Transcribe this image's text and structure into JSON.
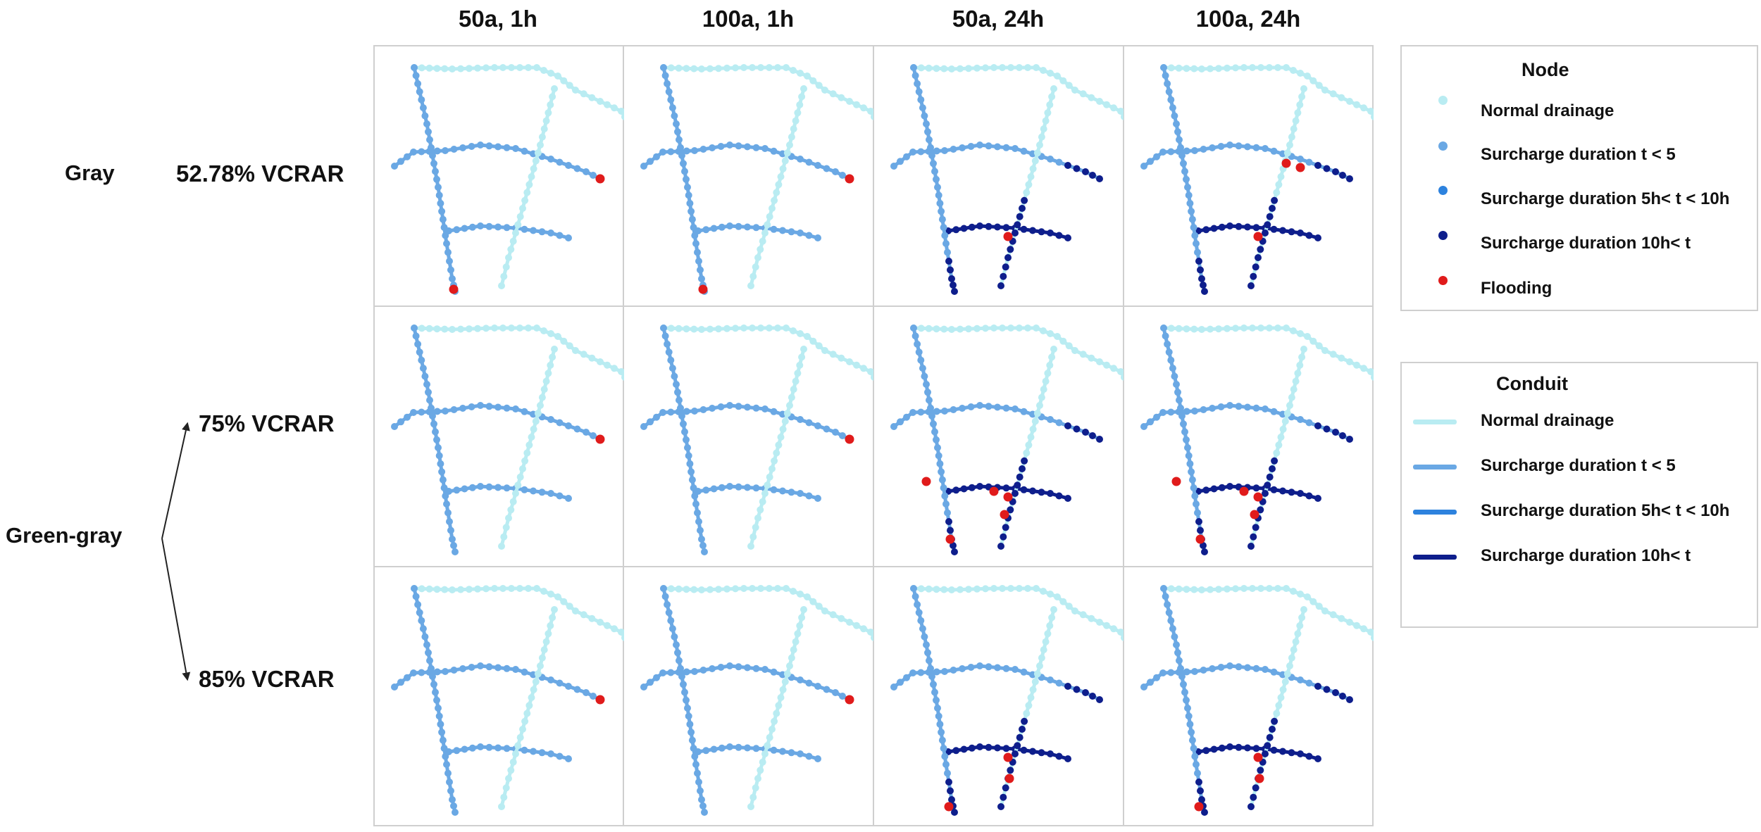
{
  "columns": [
    "50a, 1h",
    "100a, 1h",
    "50a, 24h",
    "100a, 24h"
  ],
  "row_groups": {
    "gray": "Gray",
    "green_gray": "Green-gray"
  },
  "rows": [
    "52.78% VCRAR",
    "75% VCRAR",
    "85% VCRAR"
  ],
  "legend_node": {
    "title": "Node",
    "items": [
      {
        "label": "Normal drainage",
        "color": "#b9ecf2"
      },
      {
        "label": "Surcharge duration   t < 5",
        "color": "#6aa8e4"
      },
      {
        "label": "Surcharge duration   5h< t < 10h",
        "color": "#2d82de"
      },
      {
        "label": "Surcharge duration   10h< t",
        "color": "#0e1e8c"
      },
      {
        "label": "Flooding",
        "color": "#e01b1b"
      }
    ]
  },
  "legend_conduit": {
    "title": "Conduit",
    "items": [
      {
        "label": "Normal drainage",
        "color": "#b9ecf2"
      },
      {
        "label": "Surcharge duration   t < 5",
        "color": "#6aa8e4"
      },
      {
        "label": "Surcharge duration   5h< t < 10h",
        "color": "#2d82de"
      },
      {
        "label": "Surcharge duration   10h< t",
        "color": "#0e1e8c"
      }
    ]
  }
}
